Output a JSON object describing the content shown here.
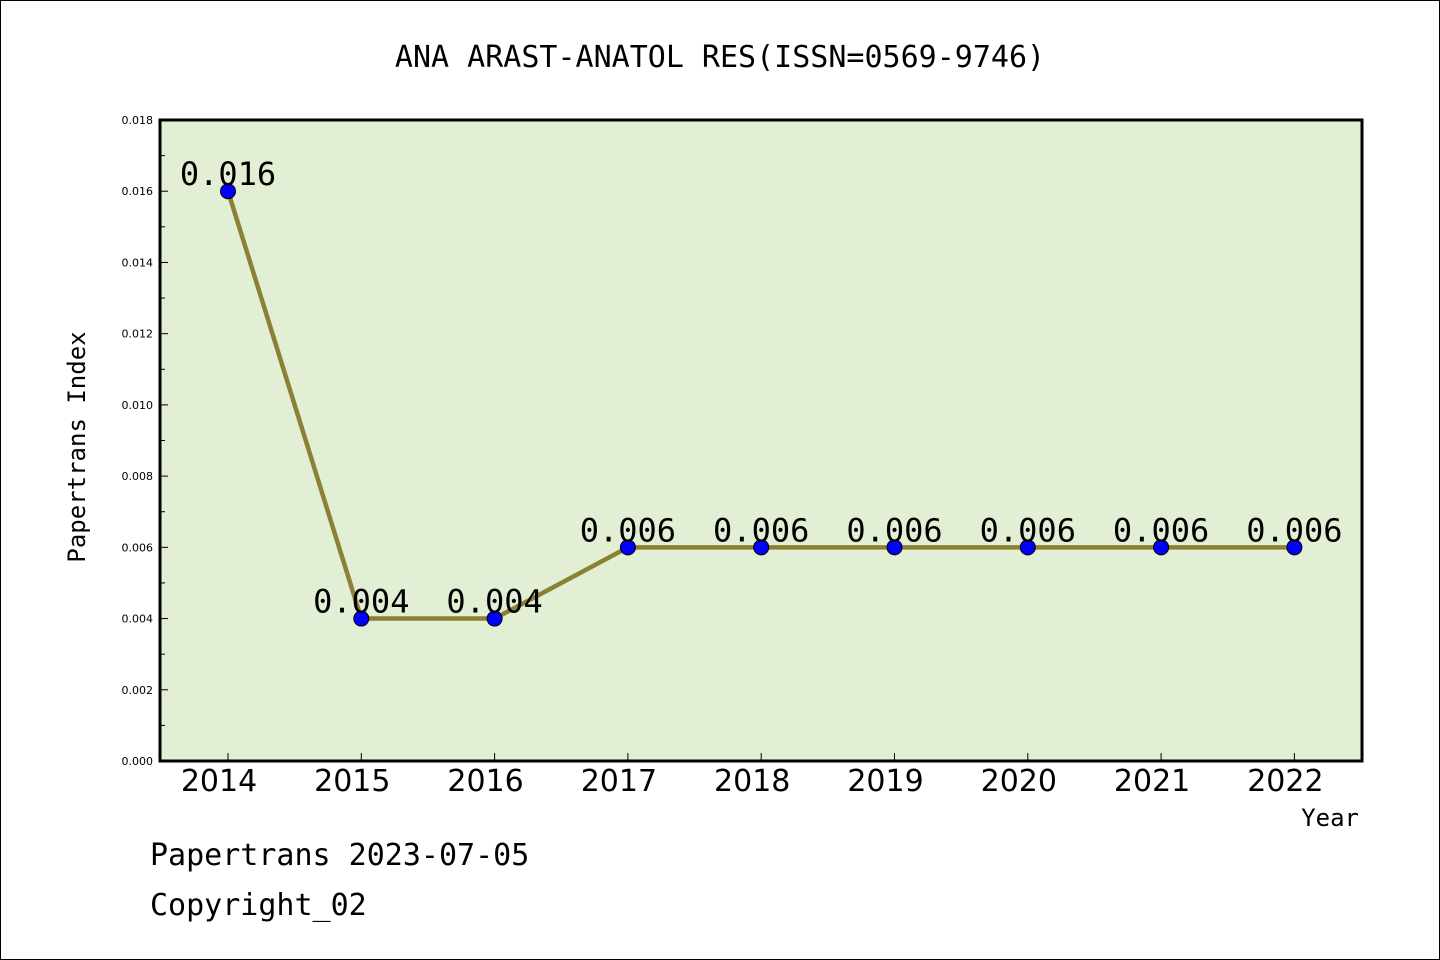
{
  "chart_data": {
    "type": "line",
    "title": "ANA ARAST-ANATOL RES(ISSN=0569-9746)",
    "xlabel": "Year",
    "ylabel": "Papertrans Index",
    "categories": [
      "2014",
      "2015",
      "2016",
      "2017",
      "2018",
      "2019",
      "2020",
      "2021",
      "2022"
    ],
    "series": [
      {
        "values": [
          0.016,
          0.004,
          0.004,
          0.006,
          0.006,
          0.006,
          0.006,
          0.006,
          0.006
        ],
        "labels": [
          "0.016",
          "0.004",
          "0.004",
          "0.006",
          "0.006",
          "0.006",
          "0.006",
          "0.006",
          "0.006"
        ]
      }
    ],
    "ylim": [
      0,
      0.018
    ],
    "yticks": [
      "0.000",
      "0.002",
      "0.004",
      "0.006",
      "0.008",
      "0.010",
      "0.012",
      "0.014",
      "0.016",
      "0.018"
    ],
    "grid": false,
    "legend": "none",
    "colors": {
      "plot_background": "#e2efd5",
      "line": "#8b8133",
      "marker": "#0000ff"
    }
  },
  "footer": {
    "line1": "Papertrans 2023-07-05",
    "line2": "Copyright_02"
  }
}
